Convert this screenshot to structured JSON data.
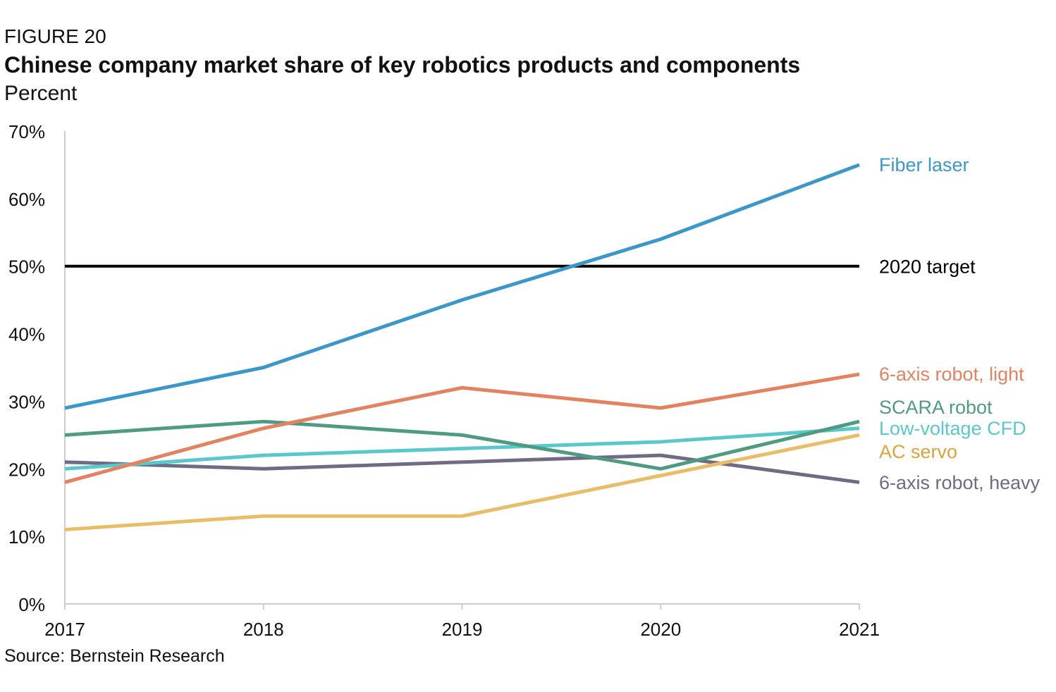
{
  "header": {
    "figure_label": "FIGURE 20",
    "title": "Chinese company market share of key robotics products and components",
    "subtitle": "Percent"
  },
  "footer": {
    "source": "Source: Bernstein Research"
  },
  "chart_data": {
    "type": "line",
    "title": "Chinese company market share of key robotics products and components",
    "ylabel": "Percent",
    "xlabel": "",
    "x": [
      "2017",
      "2018",
      "2019",
      "2020",
      "2021"
    ],
    "ylim": [
      0,
      70
    ],
    "yticks": [
      0,
      10,
      20,
      30,
      40,
      50,
      60,
      70
    ],
    "ytick_labels": [
      "0%",
      "10%",
      "20%",
      "30%",
      "40%",
      "50%",
      "60%",
      "70%"
    ],
    "grid": false,
    "legend": "direct labels at right end of lines",
    "series": [
      {
        "name": "Fiber laser",
        "color": "#3a97c9",
        "values": [
          29,
          35,
          45,
          54,
          65
        ]
      },
      {
        "name": "6-axis robot, light",
        "color": "#e3825f",
        "values": [
          18,
          26,
          32,
          29,
          34
        ]
      },
      {
        "name": "SCARA robot",
        "color": "#4e9b82",
        "values": [
          25,
          27,
          25,
          20,
          27
        ]
      },
      {
        "name": "Low-voltage CFD",
        "color": "#59c8cc",
        "values": [
          20,
          22,
          23,
          24,
          26
        ]
      },
      {
        "name": "AC servo",
        "color": "#e9bd68",
        "values": [
          11,
          13,
          13,
          19,
          25
        ]
      },
      {
        "name": "6-axis robot, heavy",
        "color": "#6f6b85",
        "values": [
          21,
          20,
          21,
          22,
          18
        ]
      }
    ],
    "reference_lines": [
      {
        "name": "2020 target",
        "value": 50,
        "color": "#000000"
      }
    ],
    "label_colors": {
      "Fiber laser": "#3a97c9",
      "6-axis robot, light": "#e3825f",
      "SCARA robot": "#4e9b82",
      "Low-voltage CFD": "#59c8cc",
      "AC servo": "#dba23e",
      "6-axis robot, heavy": "#6f6b85",
      "2020 target": "#000000"
    }
  }
}
